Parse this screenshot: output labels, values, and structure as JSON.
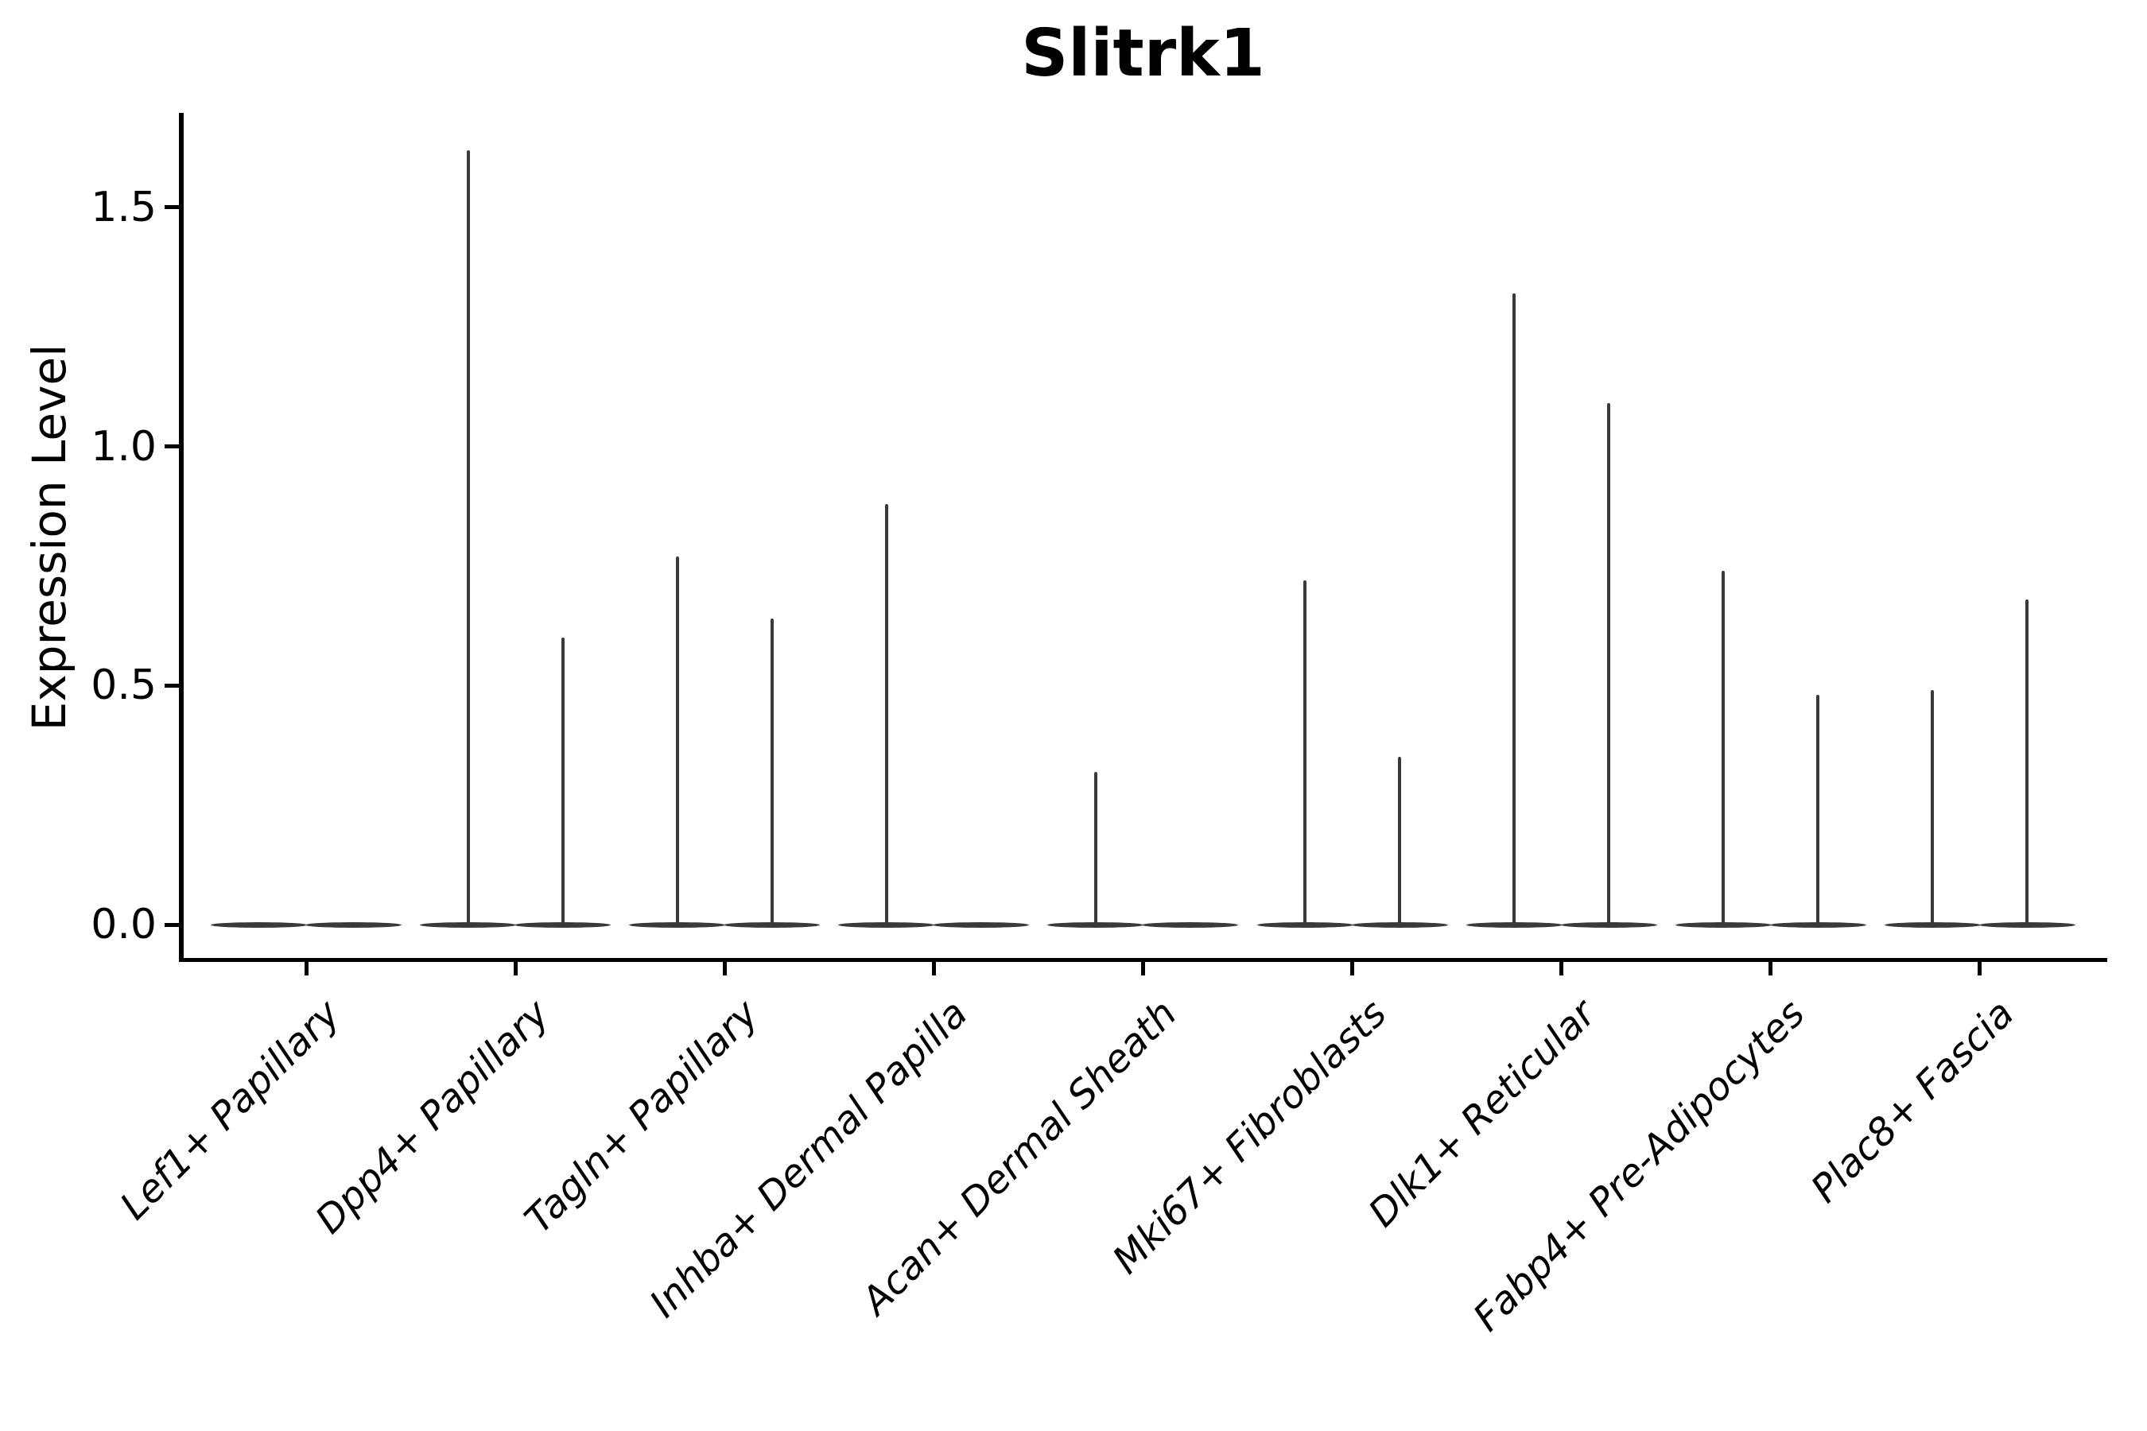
{
  "title": "Slitrk1",
  "y_axis": {
    "label": "Expression Level",
    "tick_labels": [
      "0.0",
      "0.5",
      "1.0",
      "1.5"
    ],
    "tick_values": [
      0.0,
      0.5,
      1.0,
      1.5
    ]
  },
  "chart_data": {
    "type": "violin",
    "title": "Slitrk1",
    "xlabel": "",
    "ylabel": "Expression Level",
    "ylim": [
      -0.08,
      1.7
    ],
    "grid": false,
    "legend": "none",
    "background_color": "#ffffff",
    "violin_color": "#3a3a3a",
    "axis_color": "#000000",
    "categories": [
      "Lef1+ Papillary",
      "Dpp4+ Papillary",
      "Tagln+ Papillary",
      "Inhba+ Dermal Papilla",
      "Acan+ Dermal Sheath",
      "Mki67+ Fibroblasts",
      "Dlk1+ Reticular",
      "Fabp4+ Pre-Adipocytes",
      "Plac8+ Fascia"
    ],
    "series": [
      {
        "name": "left_violin",
        "description": "left dodged violin per category; value = max expression reached by spike (bulk of distribution at 0)",
        "max_values": [
          0,
          1.62,
          0.77,
          0.88,
          0.32,
          0.72,
          1.32,
          0.74,
          0.49
        ]
      },
      {
        "name": "right_violin",
        "description": "right dodged violin per category; value = max expression reached by spike (bulk of distribution at 0)",
        "max_values": [
          0,
          0.6,
          0.64,
          0,
          0,
          0.35,
          1.09,
          0.48,
          0.68
        ]
      }
    ],
    "baseline_value": 0.0
  }
}
